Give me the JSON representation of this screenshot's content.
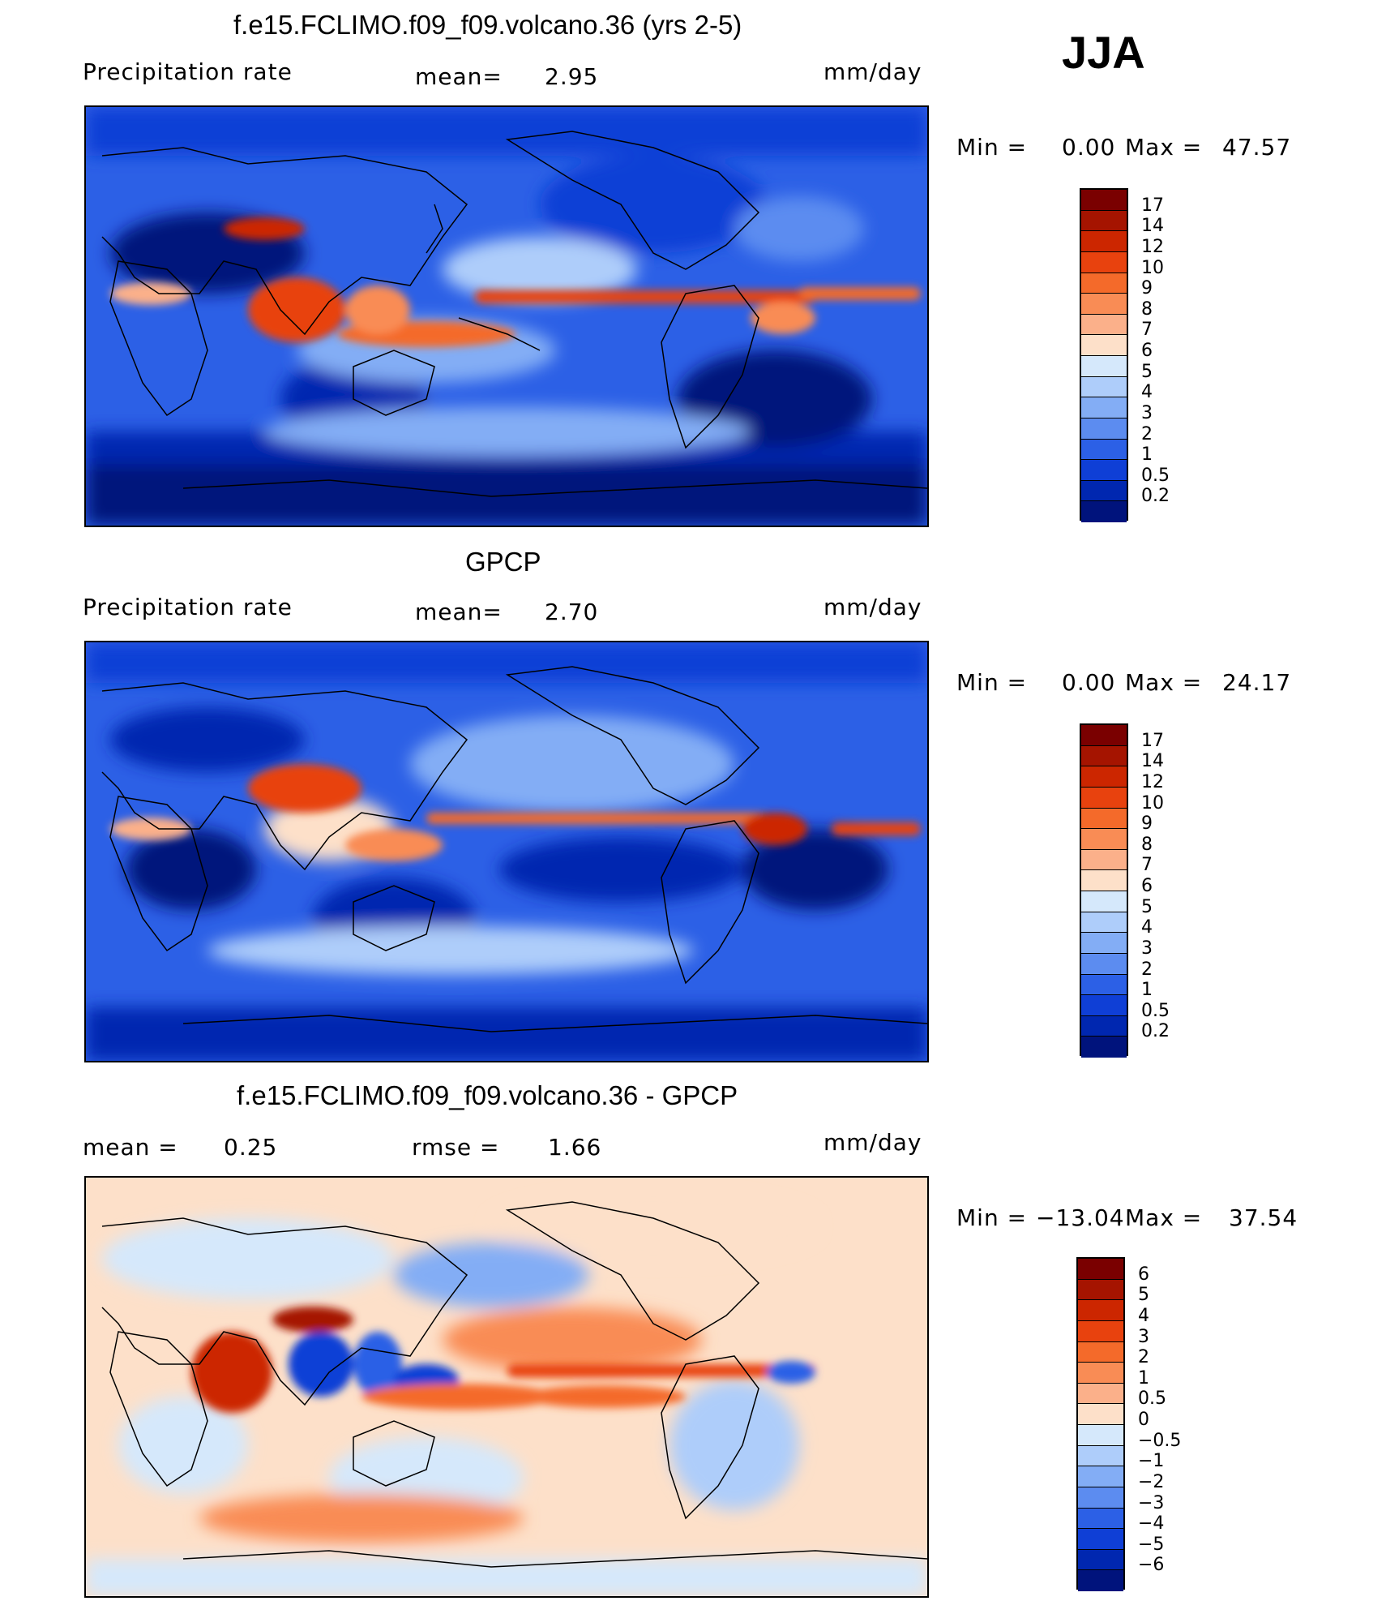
{
  "season": "JJA",
  "units": "mm/day",
  "panels": [
    {
      "title": "f.e15.FCLIMO.f09_f09.volcano.36 (yrs 2-5)",
      "variable": "Precipitation rate",
      "mean_label": "mean=",
      "mean_value": "2.95",
      "units": "mm/day",
      "min_label": "Min =",
      "min_value": "0.00",
      "max_label": "Max =",
      "max_value": "47.57",
      "colorbar": {
        "labels": [
          "17",
          "14",
          "12",
          "10",
          "9",
          "8",
          "7",
          "6",
          "5",
          "4",
          "3",
          "2",
          "1",
          "0.5",
          "0.2"
        ],
        "colors": [
          "#7a0000",
          "#a51400",
          "#cc2600",
          "#e8420e",
          "#f46a2a",
          "#f98c55",
          "#fbb08a",
          "#fde0c9",
          "#d5e8fb",
          "#aecdfa",
          "#83adf5",
          "#5c8cf0",
          "#2c60e6",
          "#0f3fd6",
          "#0027b0",
          "#00137c"
        ]
      }
    },
    {
      "title": "GPCP",
      "variable": "Precipitation rate",
      "mean_label": "mean=",
      "mean_value": "2.70",
      "units": "mm/day",
      "min_label": "Min =",
      "min_value": "0.00",
      "max_label": "Max =",
      "max_value": "24.17",
      "colorbar": {
        "labels": [
          "17",
          "14",
          "12",
          "10",
          "9",
          "8",
          "7",
          "6",
          "5",
          "4",
          "3",
          "2",
          "1",
          "0.5",
          "0.2"
        ],
        "colors": [
          "#7a0000",
          "#a51400",
          "#cc2600",
          "#e8420e",
          "#f46a2a",
          "#f98c55",
          "#fbb08a",
          "#fde0c9",
          "#d5e8fb",
          "#aecdfa",
          "#83adf5",
          "#5c8cf0",
          "#2c60e6",
          "#0f3fd6",
          "#0027b0",
          "#00137c"
        ]
      }
    },
    {
      "title": "f.e15.FCLIMO.f09_f09.volcano.36 - GPCP",
      "mean_label": "mean =",
      "mean_value": "0.25",
      "rmse_label": "rmse =",
      "rmse_value": "1.66",
      "units": "mm/day",
      "min_label": "Min =",
      "min_value": "−13.04",
      "max_label": "Max =",
      "max_value": "37.54",
      "colorbar": {
        "labels": [
          "6",
          "5",
          "4",
          "3",
          "2",
          "1",
          "0.5",
          "0",
          "−0.5",
          "−1",
          "−2",
          "−3",
          "−4",
          "−5",
          "−6"
        ],
        "colors": [
          "#7a0000",
          "#a51400",
          "#cc2600",
          "#e8420e",
          "#f46a2a",
          "#f98c55",
          "#fbb08a",
          "#fde0c9",
          "#d5e8fb",
          "#aecdfa",
          "#83adf5",
          "#5c8cf0",
          "#2c60e6",
          "#0f3fd6",
          "#0027b0",
          "#00137c"
        ]
      }
    }
  ]
}
